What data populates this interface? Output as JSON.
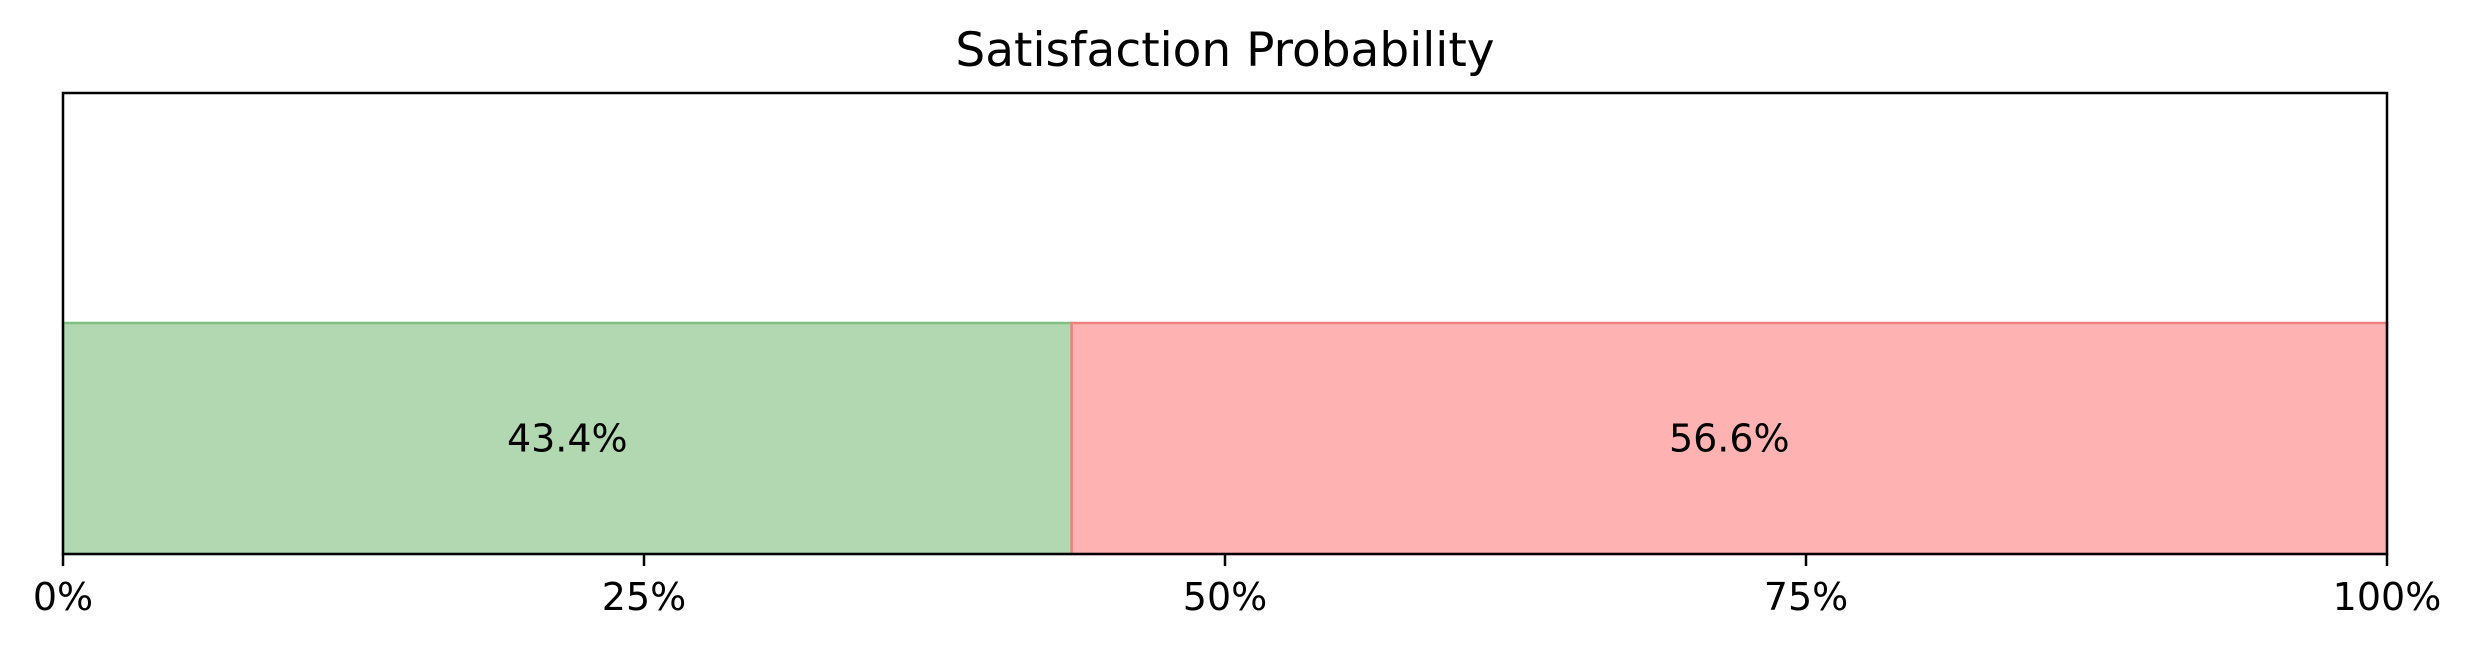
{
  "chart_data": {
    "type": "bar",
    "orientation": "horizontal-stacked",
    "title": "Satisfaction Probability",
    "xlabel": "",
    "ylabel": "",
    "xlim": [
      0,
      100
    ],
    "x_ticks": [
      0,
      25,
      50,
      75,
      100
    ],
    "x_tick_labels": [
      "0%",
      "25%",
      "50%",
      "75%",
      "100%"
    ],
    "grid": false,
    "series": [
      {
        "value": 43.4,
        "label": "43.4%",
        "color": "#b2d8b2",
        "edge_color": "#80c080"
      },
      {
        "value": 56.6,
        "label": "56.6%",
        "color": "#ffb2b2",
        "edge_color": "#f08080"
      }
    ]
  }
}
